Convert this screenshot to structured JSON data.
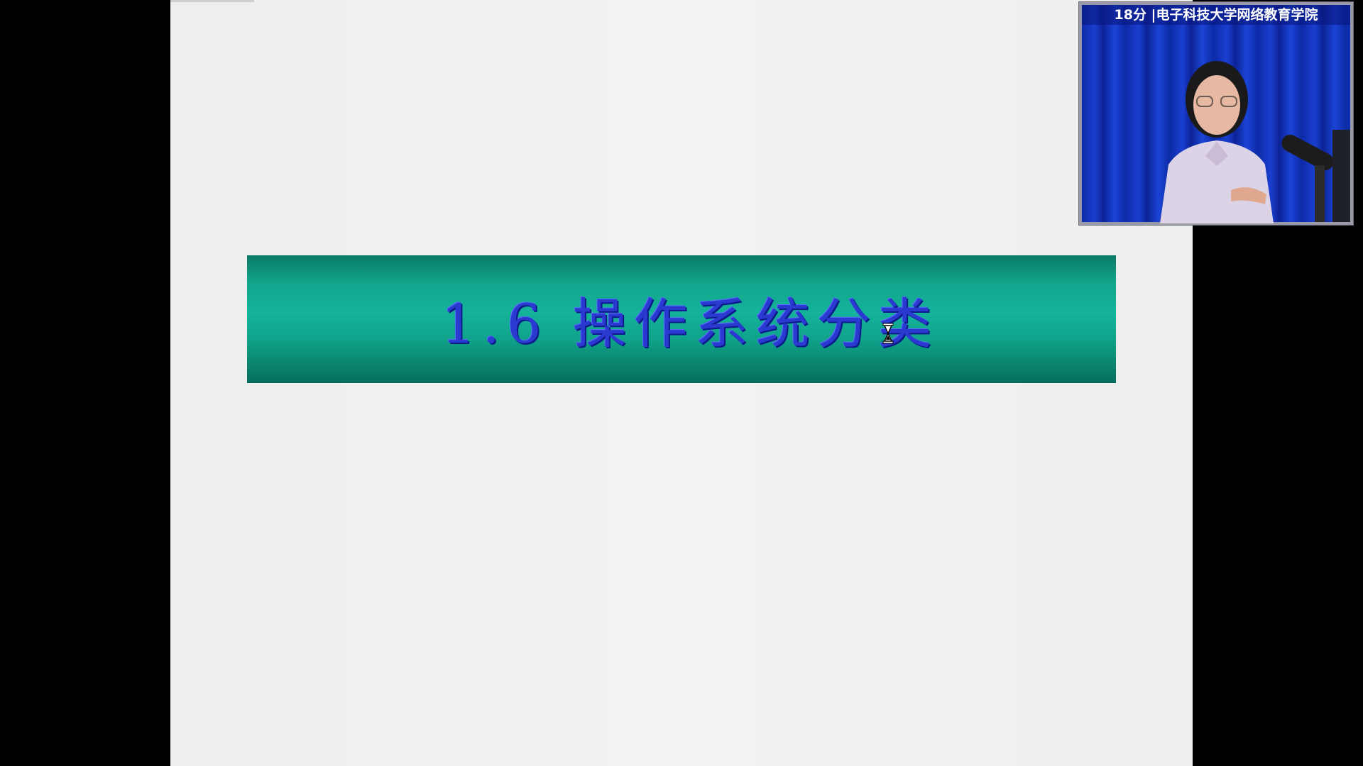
{
  "slide": {
    "title": "1.6 操作系统分类"
  },
  "video": {
    "caption": "18分 |电子科技大学网络教育学院"
  },
  "cursor": {
    "icon": "hourglass-icon"
  },
  "colors": {
    "banner": "#12a58c",
    "title_text": "#2a3ad0",
    "video_backdrop": "#1a3fd0",
    "page_background": "#000000",
    "slide_background": "#eeeeee"
  }
}
